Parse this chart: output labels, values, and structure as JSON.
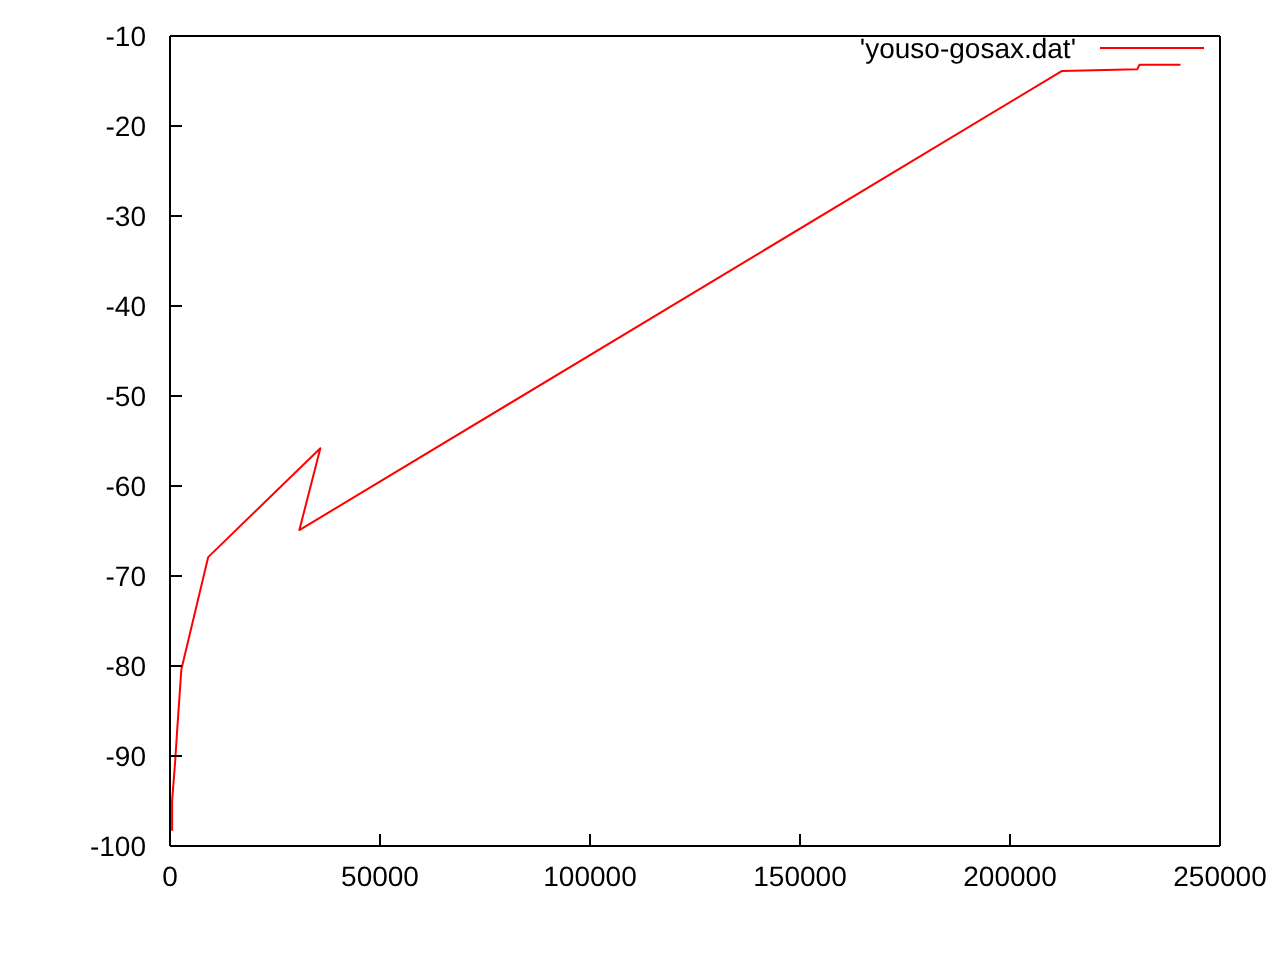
{
  "chart_data": {
    "type": "line",
    "x": [
      500,
      500,
      1200,
      1700,
      2700,
      9100,
      35800,
      30800,
      212300,
      230300,
      230800,
      240600
    ],
    "series": [
      {
        "name": "'youso-gosax.dat'",
        "color": "#ff0000",
        "values": [
          -98.3,
          -95,
          -90.8,
          -87.2,
          -80.4,
          -67.9,
          -55.8,
          -64.9,
          -13.9,
          -13.7,
          -13.2,
          -13.2
        ]
      }
    ],
    "xlim": [
      0,
      250000
    ],
    "xticks": [
      0,
      50000,
      100000,
      150000,
      200000,
      250000
    ],
    "ylim": [
      -100,
      -10
    ],
    "yticks": [
      -100,
      -90,
      -80,
      -70,
      -60,
      -50,
      -40,
      -30,
      -20,
      -10
    ],
    "grid": false,
    "legend": "top right",
    "marker": "none",
    "line_style": "solid"
  }
}
